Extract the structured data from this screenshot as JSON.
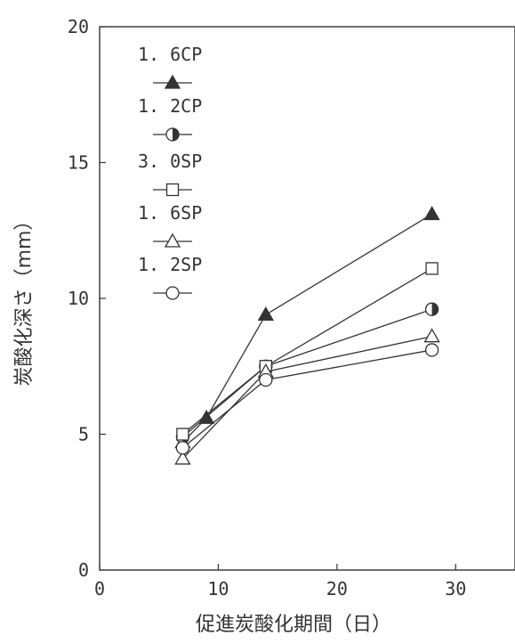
{
  "chart_data": {
    "type": "line",
    "xlabel": "促進炭酸化期間（日）",
    "ylabel": "炭酸化深さ（mm）",
    "xlim": [
      0,
      35
    ],
    "ylim": [
      0,
      20
    ],
    "x_ticks": [
      "0",
      "10",
      "20",
      "30"
    ],
    "y_ticks": [
      "0",
      "5",
      "10",
      "15",
      "20"
    ],
    "grid": false,
    "legend_position": "top-left",
    "series": [
      {
        "name": "1.6CP",
        "marker": "triangle-filled",
        "x": [
          7,
          9,
          14,
          28
        ],
        "y": [
          4.7,
          5.6,
          9.4,
          13.1
        ]
      },
      {
        "name": "1.2CP",
        "marker": "circle-half",
        "x": [
          7,
          14,
          28
        ],
        "y": [
          4.9,
          7.5,
          9.6
        ]
      },
      {
        "name": "3.0SP",
        "marker": "square-open",
        "x": [
          7,
          14,
          28
        ],
        "y": [
          5.0,
          7.5,
          11.1
        ]
      },
      {
        "name": "1.6SP",
        "marker": "triangle-open",
        "x": [
          7,
          14,
          28
        ],
        "y": [
          4.1,
          7.3,
          8.6
        ]
      },
      {
        "name": "1.2SP",
        "marker": "circle-open",
        "x": [
          7,
          14,
          28
        ],
        "y": [
          4.5,
          7.0,
          8.1
        ]
      }
    ],
    "legend_labels": [
      "1. 6CP",
      "1. 2CP",
      "3. 0SP",
      "1. 6SP",
      "1. 2SP"
    ]
  }
}
